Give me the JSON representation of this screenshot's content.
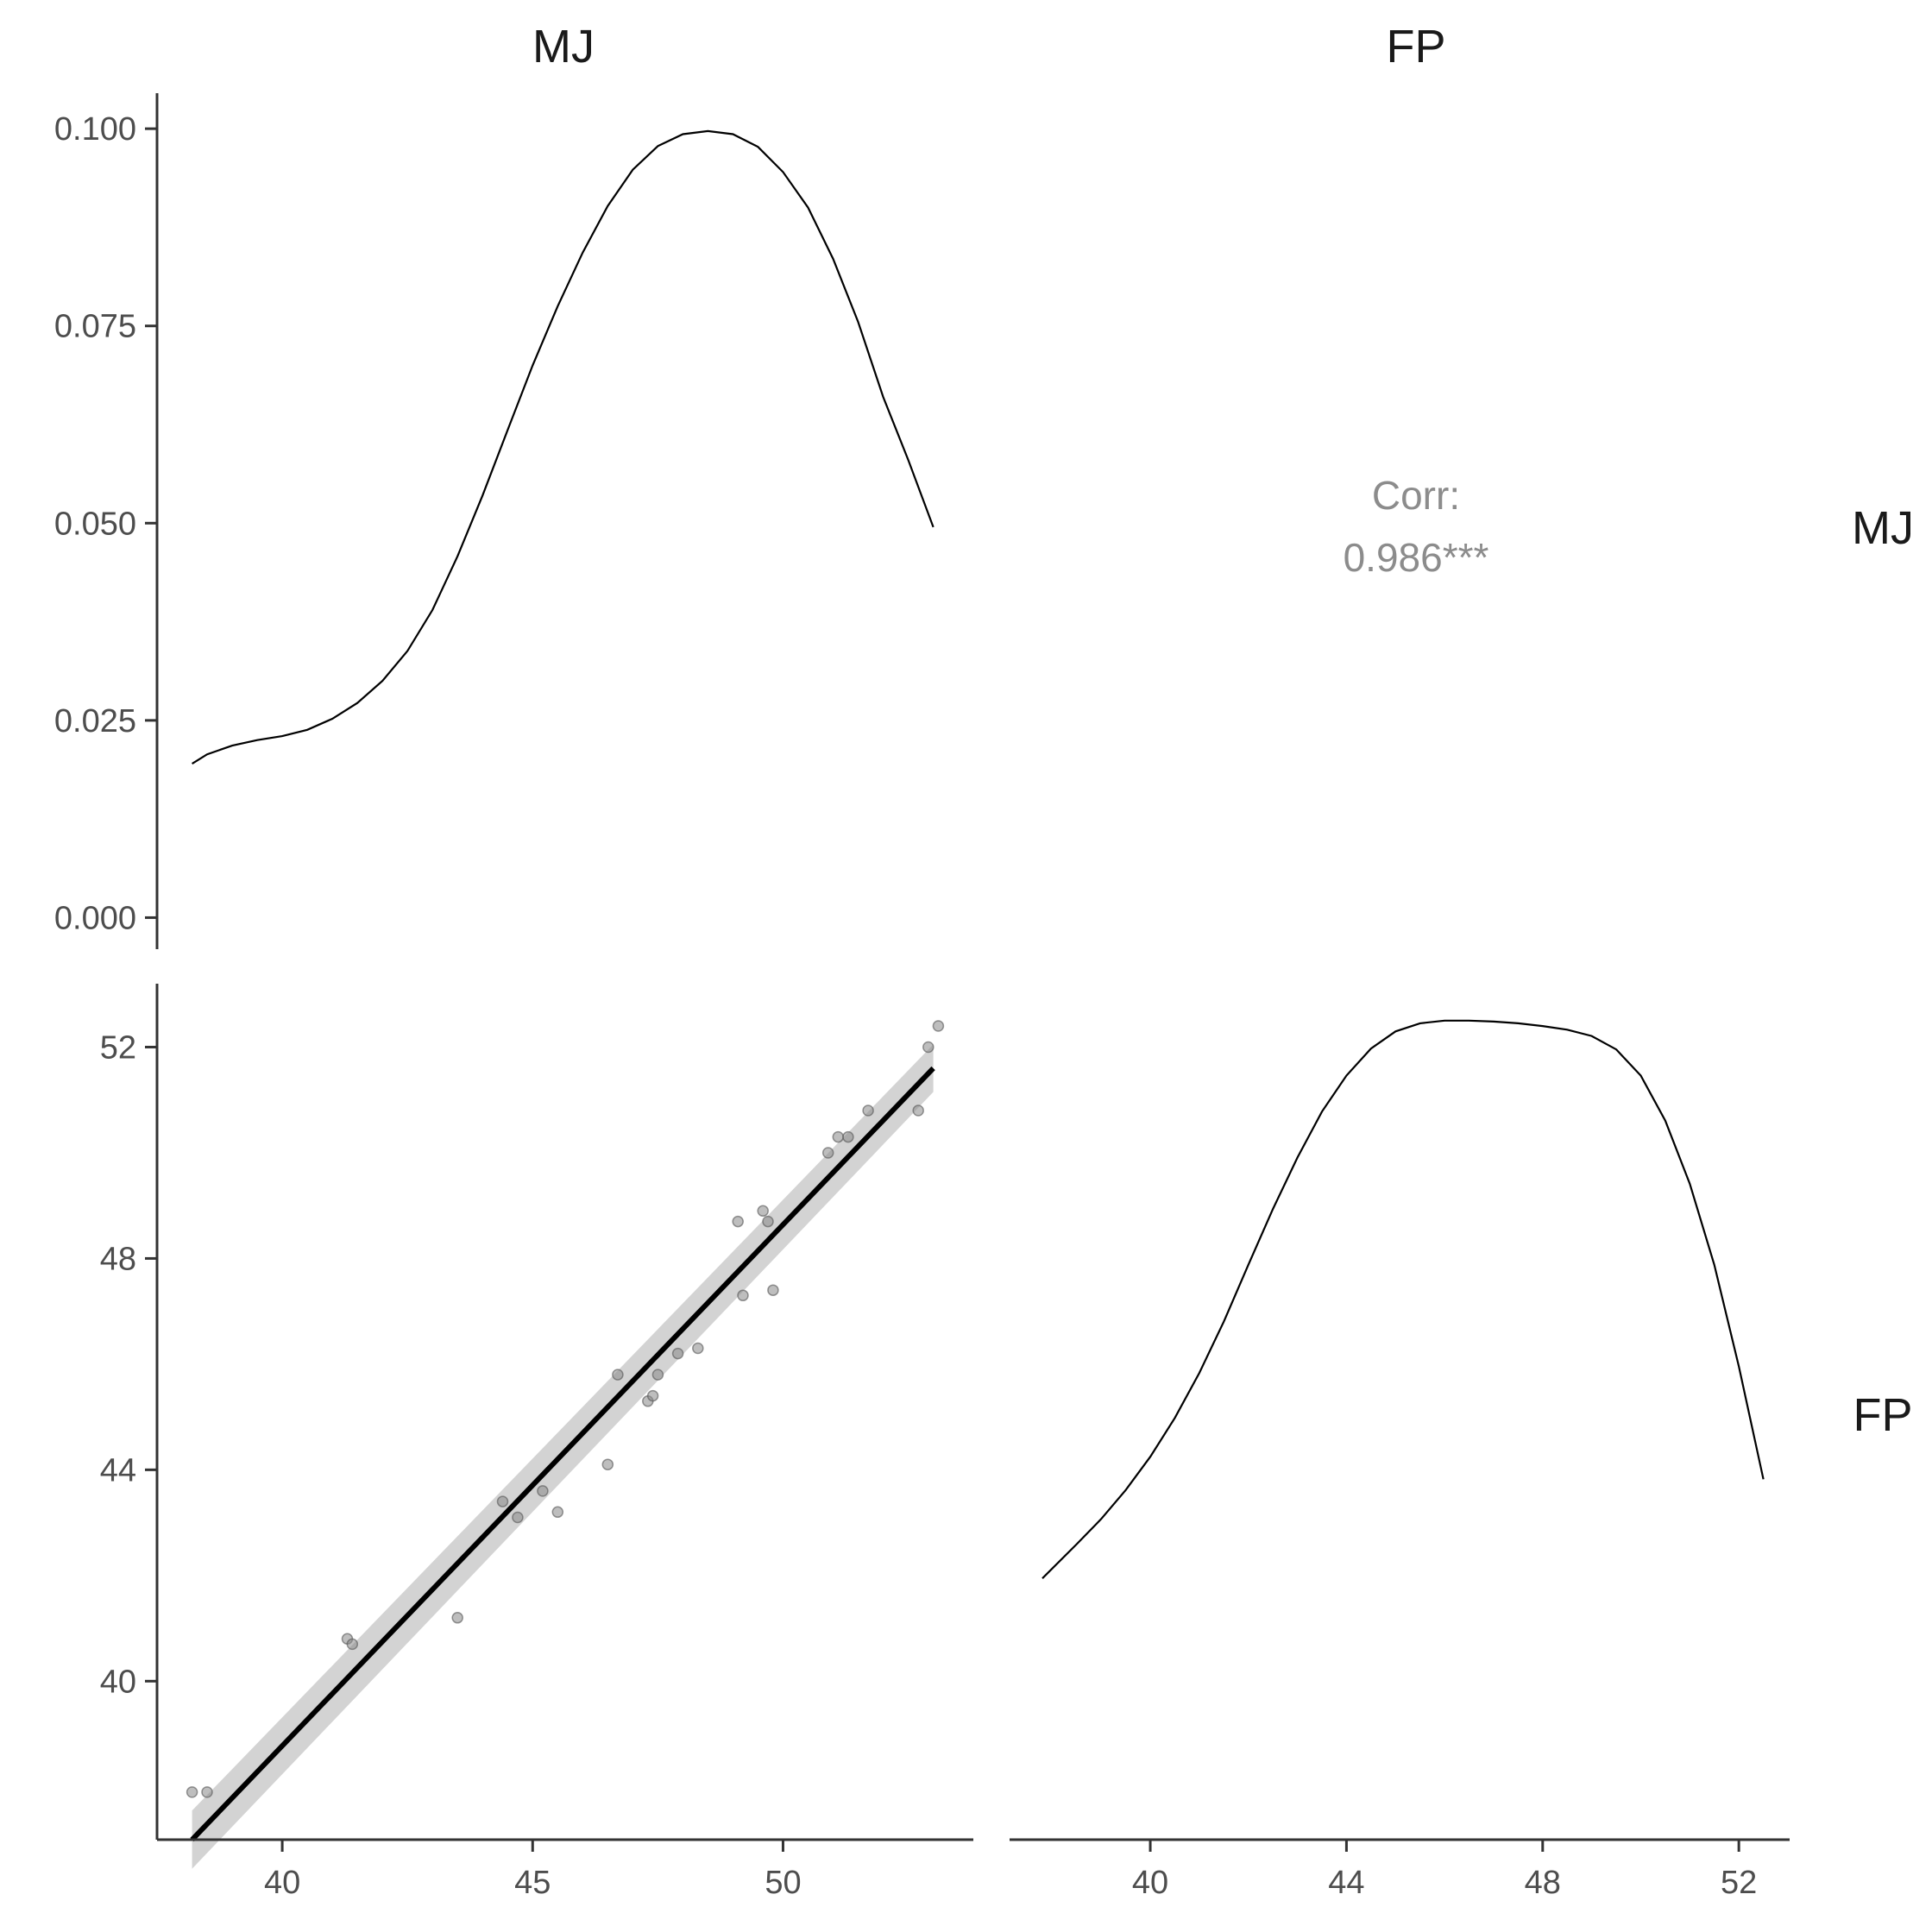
{
  "chart_data": {
    "type": "scatter",
    "variables": [
      "MJ",
      "FP"
    ],
    "colors": {
      "line": "#000000",
      "band": "#c8c8c8",
      "point": "#888888",
      "corr_text": "#8c8c8c"
    },
    "panels": {
      "mj_density": {
        "type": "line",
        "xlim": [
          37.5,
          53.8
        ],
        "ylim": [
          -0.004,
          0.1045
        ],
        "yticks": [
          {
            "value": 0.0,
            "label": "0.000"
          },
          {
            "value": 0.025,
            "label": "0.025"
          },
          {
            "value": 0.05,
            "label": "0.050"
          },
          {
            "value": 0.075,
            "label": "0.075"
          },
          {
            "value": 0.1,
            "label": "0.100"
          }
        ],
        "x": [
          38.2,
          38.5,
          39.0,
          39.5,
          40.0,
          40.5,
          41.0,
          41.5,
          42.0,
          42.5,
          43.0,
          43.5,
          44.0,
          44.5,
          45.0,
          45.5,
          46.0,
          46.5,
          47.0,
          47.5,
          48.0,
          48.5,
          49.0,
          49.5,
          50.0,
          50.5,
          51.0,
          51.5,
          52.0,
          52.5,
          53.0
        ],
        "y": [
          0.0195,
          0.0207,
          0.0218,
          0.0225,
          0.023,
          0.0238,
          0.0252,
          0.0272,
          0.03,
          0.0338,
          0.039,
          0.0458,
          0.0535,
          0.0618,
          0.07,
          0.0775,
          0.0843,
          0.0902,
          0.0948,
          0.0978,
          0.0993,
          0.0997,
          0.0993,
          0.0977,
          0.0945,
          0.09,
          0.0835,
          0.0755,
          0.066,
          0.058,
          0.0495
        ]
      },
      "correlation": {
        "label": "Corr:",
        "value": "0.986***"
      },
      "scatter": {
        "type": "scatter",
        "xlim": [
          37.5,
          53.8
        ],
        "ylim": [
          37.0,
          53.2
        ],
        "xticks": [
          40,
          45,
          50
        ],
        "yticks": [
          40,
          44,
          48,
          52
        ],
        "points": [
          [
            38.2,
            37.9
          ],
          [
            38.5,
            37.9
          ],
          [
            41.3,
            40.8
          ],
          [
            41.4,
            40.7
          ],
          [
            43.5,
            41.2
          ],
          [
            44.4,
            43.4
          ],
          [
            44.7,
            43.1
          ],
          [
            45.2,
            43.6
          ],
          [
            45.5,
            43.2
          ],
          [
            46.5,
            44.1
          ],
          [
            46.7,
            45.8
          ],
          [
            47.3,
            45.3
          ],
          [
            47.4,
            45.4
          ],
          [
            47.5,
            45.8
          ],
          [
            47.9,
            46.2
          ],
          [
            48.3,
            46.3
          ],
          [
            49.1,
            48.7
          ],
          [
            49.2,
            47.3
          ],
          [
            49.6,
            48.9
          ],
          [
            49.7,
            48.7
          ],
          [
            49.8,
            47.4
          ],
          [
            50.9,
            50.0
          ],
          [
            51.1,
            50.3
          ],
          [
            51.3,
            50.3
          ],
          [
            51.7,
            50.8
          ],
          [
            52.7,
            50.8
          ],
          [
            52.9,
            52.0
          ],
          [
            53.1,
            52.4
          ]
        ],
        "fit": {
          "x": [
            38.2,
            53.0
          ],
          "y": [
            37.0,
            51.6
          ]
        }
      },
      "fp_density": {
        "type": "line",
        "xlim": [
          37.8,
          53.0
        ],
        "ylim": [
          0.0,
          0.095
        ],
        "xticks": [
          40,
          44,
          48,
          52
        ],
        "x": [
          37.8,
          38.5,
          39.0,
          39.5,
          40.0,
          40.5,
          41.0,
          41.5,
          42.0,
          42.5,
          43.0,
          43.5,
          44.0,
          44.5,
          45.0,
          45.5,
          46.0,
          46.5,
          47.0,
          47.5,
          48.0,
          48.5,
          49.0,
          49.5,
          50.0,
          50.5,
          51.0,
          51.5,
          52.0,
          52.5
        ],
        "y": [
          0.029,
          0.0328,
          0.0356,
          0.0388,
          0.0425,
          0.0468,
          0.0518,
          0.0575,
          0.0638,
          0.07,
          0.0757,
          0.0808,
          0.0848,
          0.0878,
          0.0897,
          0.0906,
          0.0909,
          0.0909,
          0.0908,
          0.0906,
          0.0903,
          0.0899,
          0.0892,
          0.0877,
          0.0848,
          0.0798,
          0.0728,
          0.0638,
          0.0525,
          0.04
        ]
      }
    }
  }
}
